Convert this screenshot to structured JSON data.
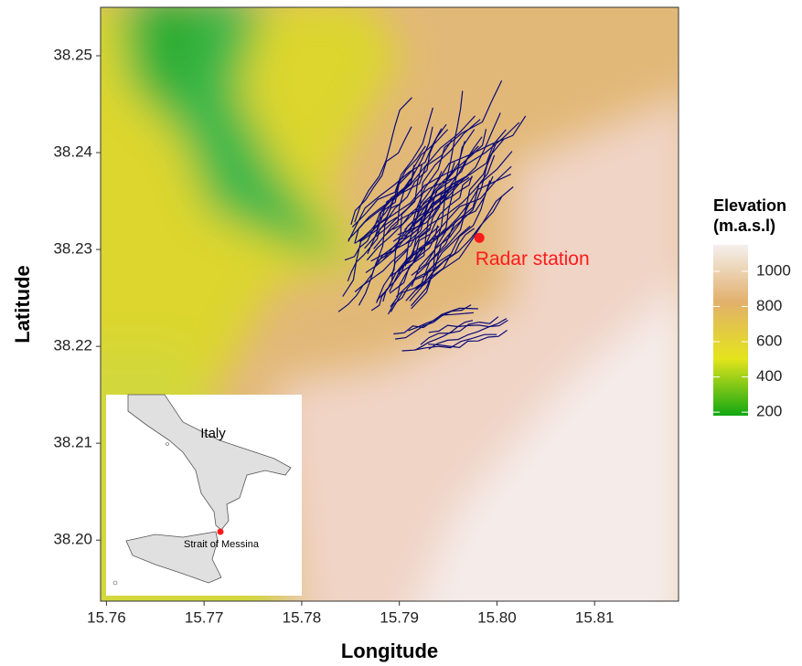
{
  "chart_data": {
    "type": "map",
    "xlabel": "Longitude",
    "ylabel": "Latitude",
    "xlim": [
      15.7594,
      15.8186
    ],
    "ylim": [
      38.1937,
      38.255
    ],
    "xticks": [
      15.76,
      15.77,
      15.78,
      15.79,
      {
        "value": 15.8,
        "label": "15.80"
      },
      15.81
    ],
    "yticks": [
      {
        "value": 38.2,
        "label": "38.20"
      },
      38.21,
      38.22,
      38.23,
      38.24,
      38.25
    ],
    "legend_title": "Elevation (m.a.s.l)",
    "colorbar_lim": [
      180,
      1150
    ],
    "colorbar_ticks": [
      200,
      400,
      600,
      800,
      1000
    ],
    "colorbar_colors": [
      "#12a812",
      "#e4e41c",
      "#e2b06c",
      "#f4f0ee"
    ],
    "track_color": "#0a0a78",
    "station": {
      "label": "Radar station",
      "x": 15.7982,
      "y": 38.2312,
      "color": "#ff1a1a"
    },
    "inset": {
      "country": "Italy",
      "strait": "Strait of Messina"
    }
  }
}
